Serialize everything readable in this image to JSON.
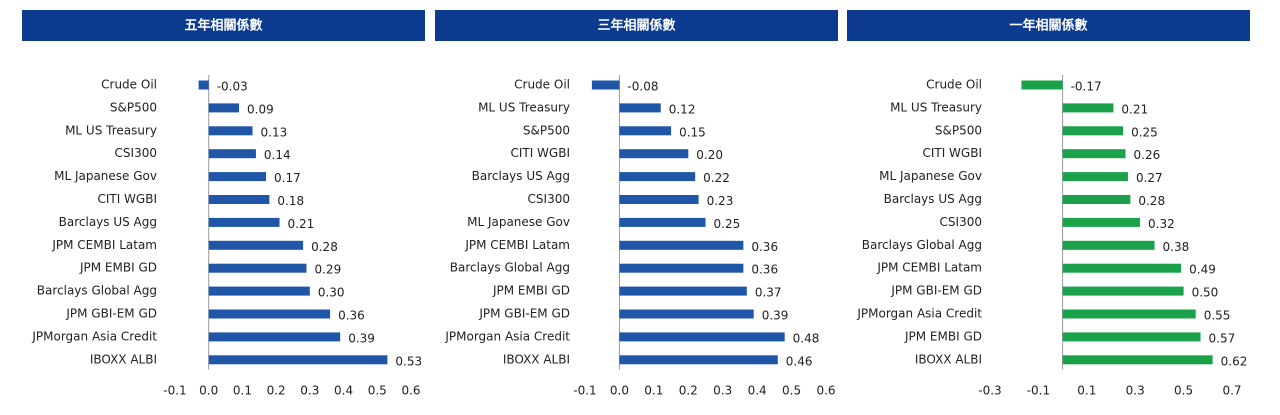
{
  "chart_data": [
    {
      "type": "barh",
      "title": "五年相關係數",
      "color": "#1f56a8",
      "categories": [
        "Crude Oil",
        "S&P500",
        "ML US Treasury",
        "CSI300",
        "ML Japanese Gov",
        "CITI WGBI",
        "Barclays US Agg",
        "JPM CEMBI Latam",
        "JPM EMBI GD",
        "Barclays Global Agg",
        "JPM GBI-EM GD",
        "JPMorgan Asia Credit",
        "IBOXX ALBI"
      ],
      "values": [
        -0.03,
        0.09,
        0.13,
        0.14,
        0.17,
        0.18,
        0.21,
        0.28,
        0.29,
        0.3,
        0.36,
        0.39,
        0.53
      ],
      "value_labels": [
        "-0.03",
        "0.09",
        "0.13",
        "0.14",
        "0.17",
        "0.18",
        "0.21",
        "0.28",
        "0.29",
        "0.30",
        "0.36",
        "0.39",
        "0.53"
      ],
      "xlim": [
        -0.1,
        0.6
      ],
      "xticks": [
        -0.1,
        {
          "value": 0,
          "label": "0.0"
        },
        0.1,
        0.2,
        0.3,
        0.4,
        0.5,
        0.6
      ]
    },
    {
      "type": "barh",
      "title": "三年相關係數",
      "color": "#1f56a8",
      "categories": [
        "Crude Oil",
        "ML US Treasury",
        "S&P500",
        "CITI WGBI",
        "Barclays US Agg",
        "CSI300",
        "ML Japanese Gov",
        "JPM CEMBI Latam",
        "Barclays Global Agg",
        "JPM EMBI GD",
        "JPM GBI-EM GD",
        "JPMorgan Asia Credit",
        "IBOXX ALBI"
      ],
      "values": [
        -0.08,
        0.12,
        0.15,
        0.2,
        0.22,
        0.23,
        0.25,
        0.36,
        0.36,
        0.37,
        0.39,
        0.48,
        0.46
      ],
      "value_labels": [
        "-0.08",
        "0.12",
        "0.15",
        "0.20",
        "0.22",
        "0.23",
        "0.25",
        "0.36",
        "0.36",
        "0.37",
        "0.39",
        "0.48",
        "0.46"
      ],
      "xlim": [
        -0.1,
        0.6
      ],
      "xticks": [
        -0.1,
        {
          "value": 0,
          "label": "0.0"
        },
        0.1,
        0.2,
        0.3,
        0.4,
        0.5,
        0.6
      ]
    },
    {
      "type": "barh",
      "title": "一年相關係數",
      "color": "#1aa14a",
      "categories": [
        "Crude Oil",
        "ML US Treasury",
        "S&P500",
        "CITI WGBI",
        "ML Japanese Gov",
        "Barclays US Agg",
        "CSI300",
        "Barclays Global Agg",
        "JPM CEMBI Latam",
        "JPM GBI-EM GD",
        "JPMorgan Asia Credit",
        "JPM EMBI GD",
        "IBOXX ALBI"
      ],
      "values": [
        -0.17,
        0.21,
        0.25,
        0.26,
        0.27,
        0.28,
        0.32,
        0.38,
        0.49,
        0.5,
        0.55,
        0.57,
        0.62
      ],
      "value_labels": [
        "-0.17",
        "0.21",
        "0.25",
        "0.26",
        "0.27",
        "0.28",
        "0.32",
        "0.38",
        "0.49",
        "0.50",
        "0.55",
        "0.57",
        "0.62"
      ],
      "xlim": [
        -0.3,
        0.7
      ],
      "xticks": [
        -0.3,
        -0.1,
        0.1,
        0.3,
        0.5,
        0.7
      ]
    }
  ]
}
